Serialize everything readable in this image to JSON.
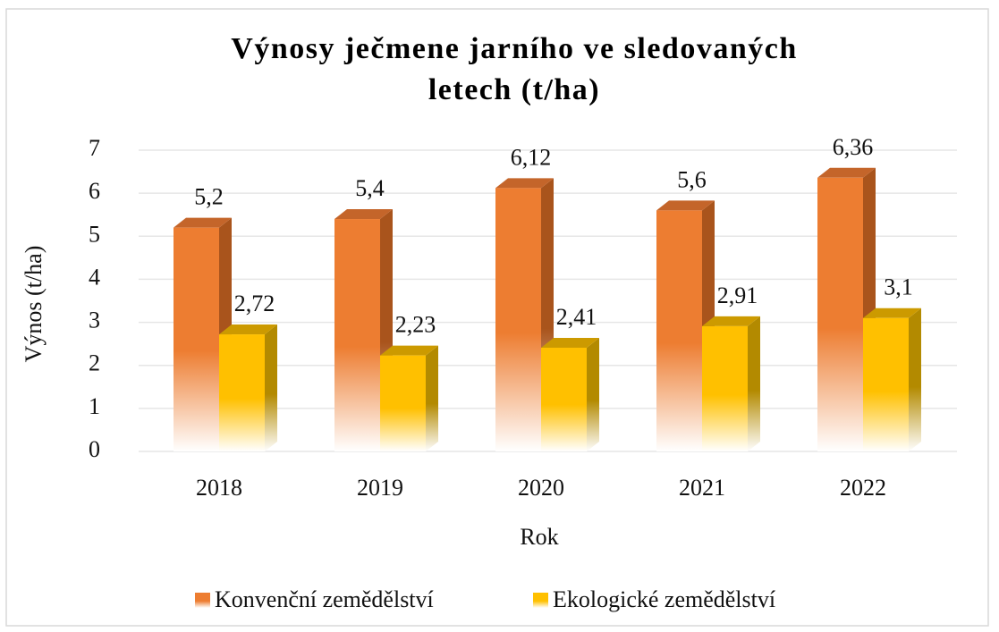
{
  "chart_data": {
    "type": "bar3d",
    "title": "Výnosy ječmene jarního ve sledovaných letech (t/ha)",
    "x_label": "Rok",
    "y_label": "Výnos (t/ha)",
    "categories": [
      "2018",
      "2019",
      "2020",
      "2021",
      "2022"
    ],
    "series": [
      {
        "name": "Konvenční zemědělství",
        "color": "#ed7d31",
        "side_color": "#a9541c",
        "top_color": "#c4652a",
        "values": [
          5.2,
          5.4,
          6.12,
          5.6,
          6.36
        ],
        "value_labels": [
          "5,2",
          "5,4",
          "6,12",
          "5,6",
          "6,36"
        ]
      },
      {
        "name": "Ekologické zemědělství",
        "color": "#ffc000",
        "side_color": "#b38a00",
        "top_color": "#cc9a00",
        "values": [
          2.72,
          2.23,
          2.41,
          2.91,
          3.1
        ],
        "value_labels": [
          "2,72",
          "2,23",
          "2,41",
          "2,91",
          "3,1"
        ]
      }
    ],
    "ylim": [
      0,
      7
    ],
    "yticks": [
      0,
      1,
      2,
      3,
      4,
      5,
      6,
      7
    ],
    "grid": true,
    "legend": "bottom"
  }
}
